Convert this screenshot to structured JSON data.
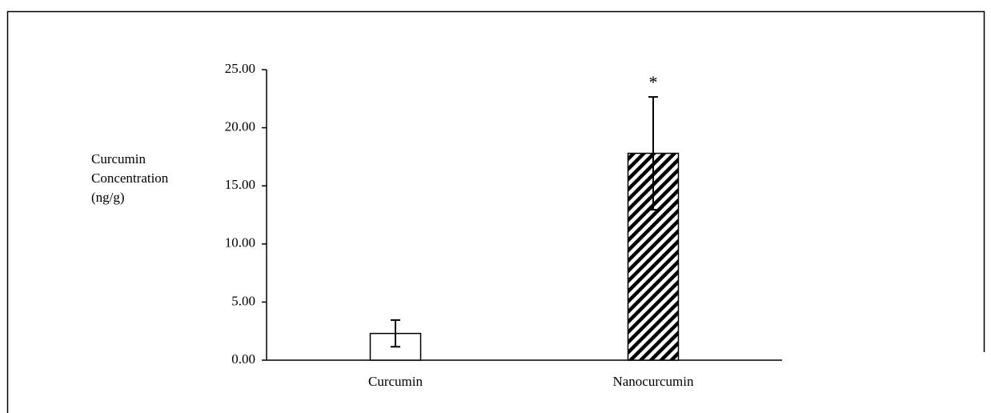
{
  "chart_data": {
    "type": "bar",
    "ylabel": [
      "Curcumin",
      "Concentration",
      "(ng/g)"
    ],
    "categories": [
      "Curcumin",
      "Nanocurcumin"
    ],
    "values": [
      2.3,
      17.8
    ],
    "errors": [
      1.15,
      4.85
    ],
    "bar_styles": [
      "plain",
      "hatched"
    ],
    "color": "#000000",
    "ylim": [
      0,
      25
    ],
    "yticks": [
      {
        "value": 0,
        "label": "0.00"
      },
      {
        "value": 5,
        "label": "5.00"
      },
      {
        "value": 10,
        "label": "10.00"
      },
      {
        "value": 15,
        "label": "15.00"
      },
      {
        "value": 20,
        "label": "20.00"
      },
      {
        "value": 25,
        "label": "25.00"
      }
    ],
    "grid": false,
    "annotations": [
      {
        "text": "*",
        "category": "Nanocurcumin"
      }
    ]
  }
}
